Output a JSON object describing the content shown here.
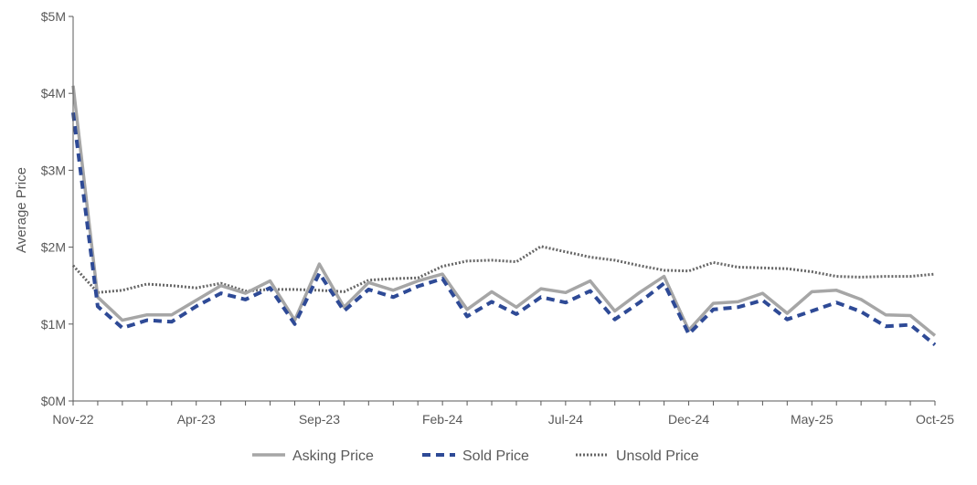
{
  "chart_data": {
    "type": "line",
    "title": "",
    "xlabel": "",
    "ylabel": "Average Price",
    "ylim": [
      0,
      5000000
    ],
    "grid": false,
    "legend_position": "bottom",
    "x_tick_labels": [
      "Nov-22",
      "Apr-23",
      "Sep-23",
      "Feb-24",
      "Jul-24",
      "Dec-24",
      "May-25",
      "Oct-25"
    ],
    "y_tick_labels": [
      "$0M",
      "$1M",
      "$2M",
      "$3M",
      "$4M",
      "$5M"
    ],
    "y_tick_values": [
      0,
      1000000,
      2000000,
      3000000,
      4000000,
      5000000
    ],
    "categories": [
      "Nov-22",
      "Dec-22",
      "Jan-23",
      "Feb-23",
      "Mar-23",
      "Apr-23",
      "May-23",
      "Jun-23",
      "Jul-23",
      "Aug-23",
      "Sep-23",
      "Oct-23",
      "Nov-23",
      "Dec-23",
      "Jan-24",
      "Feb-24",
      "Mar-24",
      "Apr-24",
      "May-24",
      "Jun-24",
      "Jul-24",
      "Aug-24",
      "Sep-24",
      "Oct-24",
      "Nov-24",
      "Dec-24",
      "Jan-25",
      "Feb-25",
      "Mar-25",
      "Apr-25",
      "May-25",
      "Jun-25",
      "Jul-25",
      "Aug-25",
      "Sep-25",
      "Oct-25"
    ],
    "series": [
      {
        "name": "Asking Price",
        "color": "#a6a6a6",
        "style": "solid",
        "values": [
          4100000,
          1350000,
          1050000,
          1120000,
          1120000,
          1310000,
          1500000,
          1400000,
          1560000,
          1050000,
          1780000,
          1220000,
          1540000,
          1440000,
          1560000,
          1650000,
          1190000,
          1420000,
          1220000,
          1460000,
          1410000,
          1560000,
          1170000,
          1410000,
          1620000,
          920000,
          1270000,
          1290000,
          1400000,
          1140000,
          1420000,
          1440000,
          1320000,
          1120000,
          1110000,
          850000
        ]
      },
      {
        "name": "Sold Price",
        "color": "#2e4a96",
        "style": "dashed",
        "values": [
          3750000,
          1230000,
          950000,
          1050000,
          1030000,
          1230000,
          1400000,
          1320000,
          1470000,
          1000000,
          1660000,
          1170000,
          1450000,
          1350000,
          1490000,
          1590000,
          1100000,
          1290000,
          1130000,
          1350000,
          1280000,
          1430000,
          1060000,
          1280000,
          1530000,
          870000,
          1190000,
          1220000,
          1310000,
          1060000,
          1170000,
          1280000,
          1160000,
          970000,
          990000,
          730000
        ]
      },
      {
        "name": "Unsold Price",
        "color": "#666666",
        "style": "dotted",
        "values": [
          1760000,
          1410000,
          1440000,
          1520000,
          1500000,
          1470000,
          1530000,
          1430000,
          1450000,
          1450000,
          1440000,
          1420000,
          1570000,
          1590000,
          1600000,
          1750000,
          1820000,
          1830000,
          1810000,
          2010000,
          1940000,
          1870000,
          1830000,
          1760000,
          1700000,
          1690000,
          1800000,
          1740000,
          1730000,
          1720000,
          1680000,
          1620000,
          1610000,
          1620000,
          1620000,
          1650000
        ]
      }
    ]
  }
}
